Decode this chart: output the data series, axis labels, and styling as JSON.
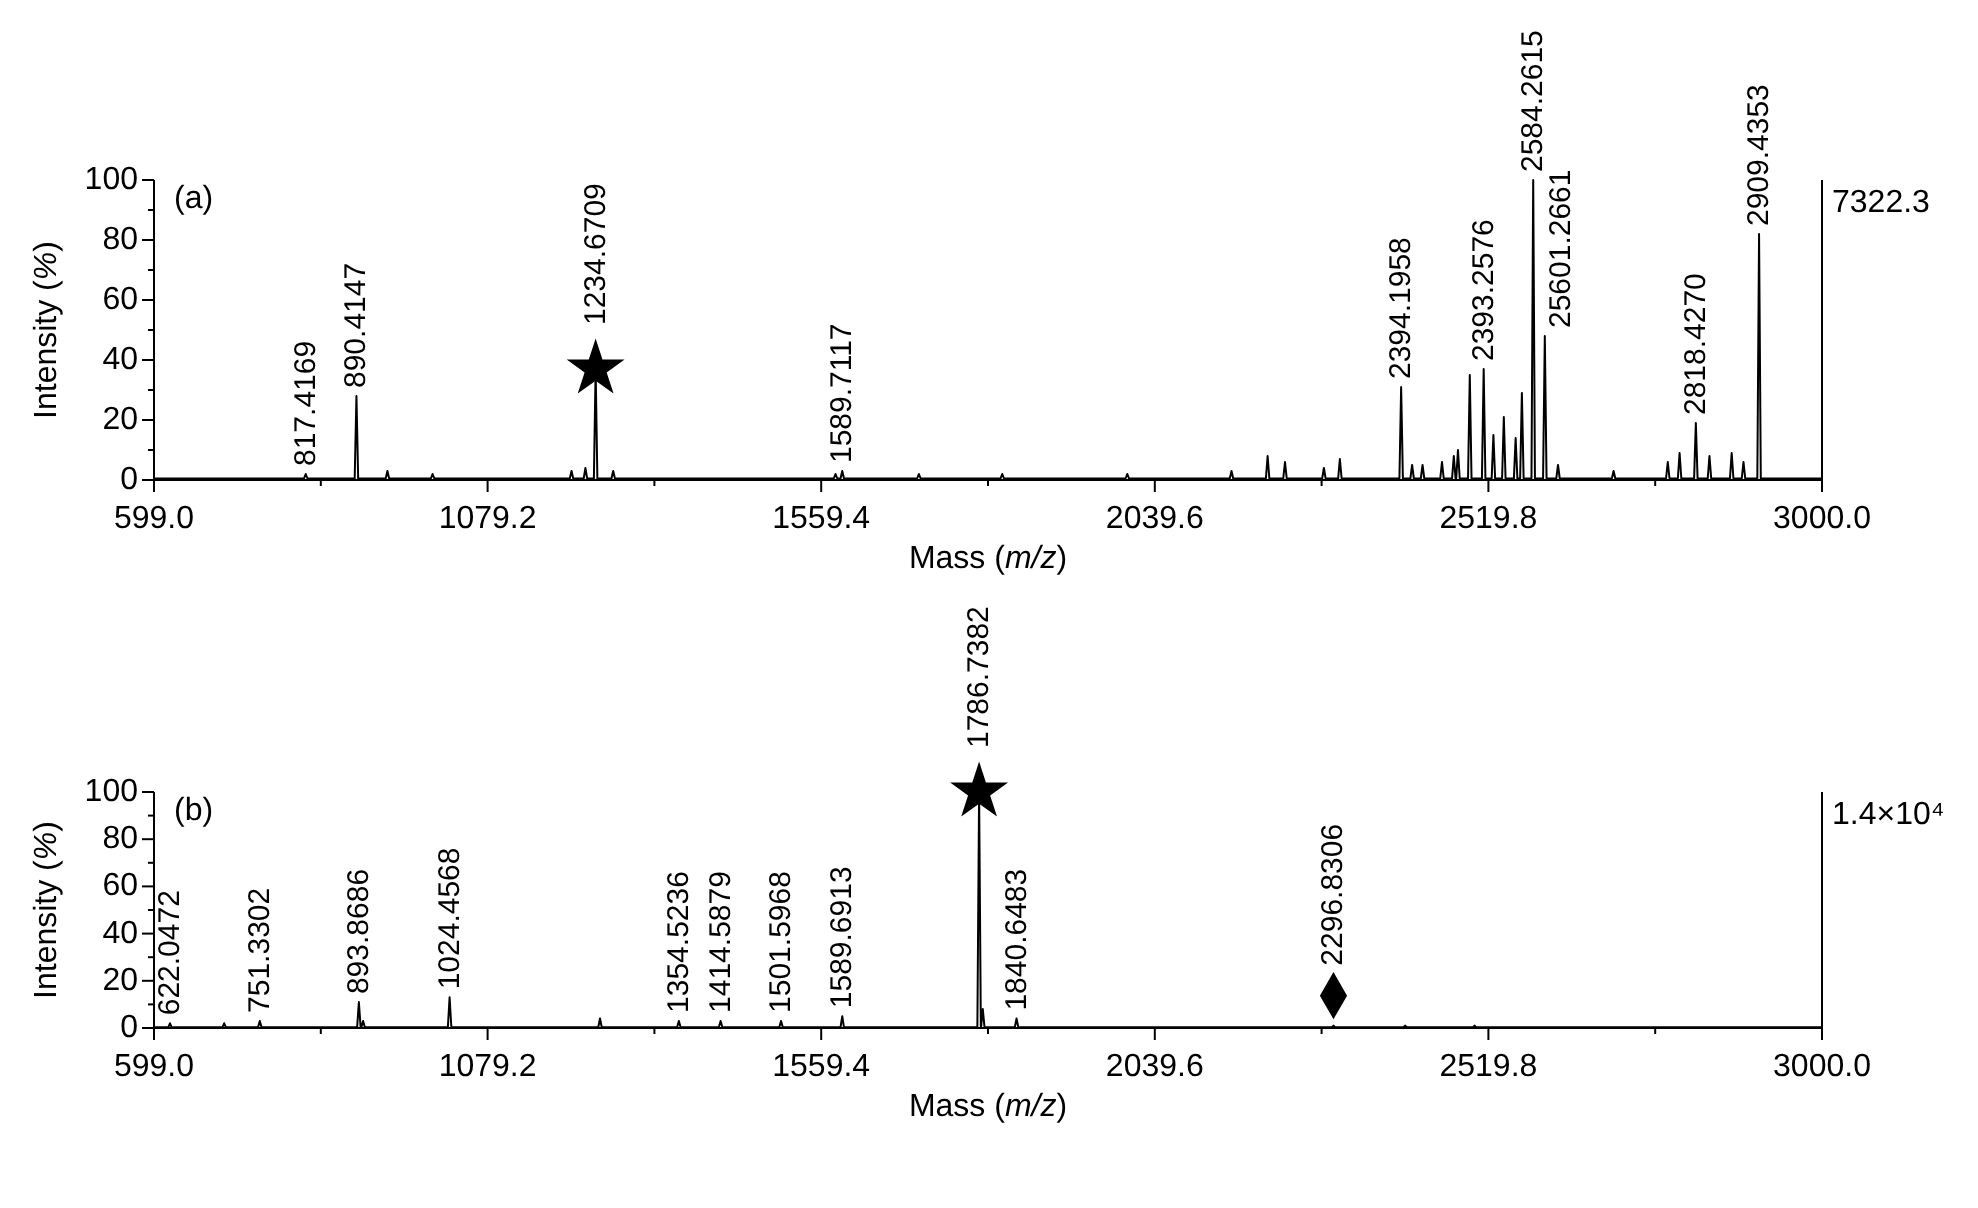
{
  "chart_data": [
    {
      "type": "line",
      "xlabel": "Mass (m/z)",
      "ylabel": "Intensity (%)",
      "xlim": [
        599,
        3000
      ],
      "ylim": [
        0,
        100
      ],
      "xticks": [
        {
          "value": 599,
          "label": "599.0"
        },
        {
          "value": 839.1,
          "label": null
        },
        {
          "value": 1079.2,
          "label": "1079.2"
        },
        {
          "value": 1319.3,
          "label": null
        },
        {
          "value": 1559.4,
          "label": "1559.4"
        },
        {
          "value": 1799.5,
          "label": null
        },
        {
          "value": 2039.6,
          "label": "2039.6"
        },
        {
          "value": 2279.7,
          "label": null
        },
        {
          "value": 2519.8,
          "label": "2519.8"
        },
        {
          "value": 2759.9,
          "label": null
        },
        {
          "value": 3000,
          "label": "3000.0"
        }
      ],
      "yticks": [
        0,
        {
          "value": 10,
          "label": null
        },
        20,
        {
          "value": 30,
          "label": null
        },
        40,
        {
          "value": 50,
          "label": null
        },
        60,
        {
          "value": 70,
          "label": null
        },
        80,
        {
          "value": 90,
          "label": null
        },
        100
      ],
      "series": [
        {
          "color": "#000000",
          "x": [
            599,
            814.9,
            817.4,
            819.9,
            887.9,
            890.4,
            892.9,
            932.5,
            935,
            937.5,
            997.5,
            1000,
            1002.5,
            1197.5,
            1200,
            1202.5,
            1217.5,
            1220,
            1222.5,
            1232.2,
            1234.7,
            1237.2,
            1257.5,
            1260,
            1262.5,
            1577.5,
            1580,
            1582.5,
            1587.2,
            1589.7,
            1592.2,
            1697.5,
            1700,
            1702.5,
            1817.5,
            1820,
            1822.5,
            1997.5,
            2000,
            2002.5,
            2147.5,
            2150,
            2152.5,
            2199.5,
            2202,
            2204.5,
            2224.5,
            2227,
            2229.5,
            2280.5,
            2283,
            2285.5,
            2303.5,
            2306,
            2308.5,
            2391.7,
            2394.2,
            2396.7,
            2407.5,
            2410,
            2412.5,
            2422.5,
            2425,
            2427.5,
            2450.5,
            2453,
            2455.5,
            2467.5,
            2470,
            2472.5,
            2473.5,
            2476,
            2478.5,
            2490.5,
            2493,
            2495.5,
            2510.5,
            2513,
            2515.5,
            2524.5,
            2527,
            2529.5,
            2539.5,
            2542,
            2544.5,
            2556.5,
            2559,
            2561.5,
            2565.5,
            2568,
            2570.5,
            2581.8,
            2584.3,
            2586.8,
            2598.5,
            2601,
            2603.5,
            2617.5,
            2620,
            2622.5,
            2697.5,
            2700,
            2702.5,
            2775.5,
            2778,
            2780.5,
            2792.5,
            2795,
            2797.5,
            2815.9,
            2818.4,
            2820.9,
            2835.5,
            2838,
            2840.5,
            2867.5,
            2870,
            2872.5,
            2884.5,
            2887,
            2889.5,
            2906.9,
            2909.4,
            2911.9,
            3000
          ],
          "values": [
            0.5,
            0.5,
            2,
            0.5,
            0.5,
            28,
            0.5,
            0.5,
            3,
            0.5,
            0.5,
            2,
            0.5,
            0.5,
            3,
            0.5,
            0.5,
            4,
            0.5,
            0.5,
            37,
            0.5,
            0.5,
            3,
            0.5,
            0.5,
            2,
            0.5,
            0.5,
            3,
            0.5,
            0.5,
            2,
            0.5,
            0.5,
            2,
            0.5,
            0.5,
            2,
            0.5,
            0.5,
            3,
            0.5,
            0.5,
            8,
            0.5,
            0.5,
            6,
            0.5,
            0.5,
            4,
            0.5,
            0.5,
            7,
            0.5,
            0.5,
            31,
            0.5,
            0.5,
            5,
            0.5,
            0.5,
            5,
            0.5,
            0.5,
            6,
            0.5,
            0.5,
            8,
            0.5,
            0.5,
            10,
            0.5,
            0.5,
            35,
            0.5,
            0.5,
            37,
            0.5,
            0.5,
            15,
            0.5,
            0.5,
            21,
            0.5,
            0.5,
            14,
            0.5,
            0.5,
            29,
            0.5,
            0.5,
            100,
            0.5,
            0.5,
            48,
            0.5,
            0.5,
            5,
            0.5,
            0.5,
            3,
            0.5,
            0.5,
            6,
            0.5,
            0.5,
            9,
            0.5,
            0.5,
            19,
            0.5,
            0.5,
            8,
            0.5,
            0.5,
            9,
            0.5,
            0.5,
            6,
            0.5,
            0.5,
            82,
            0.5,
            0.5
          ]
        }
      ],
      "annotations": [
        "(a)",
        "7322.3",
        {
          "text": "817.4169",
          "x": 817.4,
          "y": 2
        },
        {
          "text": "890.4147",
          "x": 890.4,
          "y": 28
        },
        {
          "text": "1234.6709",
          "x": 1234.7,
          "y": 37
        },
        {
          "text": "1589.7117",
          "x": 1589.7,
          "y": 3
        },
        {
          "text": "2394.1958",
          "x": 2394.2,
          "y": 31
        },
        {
          "text": "2393.2576",
          "x": 2513,
          "y": 37
        },
        {
          "text": "2584.2615",
          "x": 2584.3,
          "y": 100
        },
        {
          "text": "25601.2661",
          "x": 2601,
          "y": 48
        },
        {
          "text": "2818.4270",
          "x": 2818.4,
          "y": 19
        },
        {
          "text": "2909.4353",
          "x": 2909.4,
          "y": 82
        }
      ]
    },
    {
      "type": "line",
      "xlabel": "Mass (m/z)",
      "ylabel": "Intensity (%)",
      "xlim": [
        599,
        3000
      ],
      "ylim": [
        0,
        100
      ],
      "xticks": [
        {
          "value": 599,
          "label": "599.0"
        },
        {
          "value": 839.1,
          "label": null
        },
        {
          "value": 1079.2,
          "label": "1079.2"
        },
        {
          "value": 1319.3,
          "label": null
        },
        {
          "value": 1559.4,
          "label": "1559.4"
        },
        {
          "value": 1799.5,
          "label": null
        },
        {
          "value": 2039.6,
          "label": "2039.6"
        },
        {
          "value": 2279.7,
          "label": null
        },
        {
          "value": 2519.8,
          "label": "2519.8"
        },
        {
          "value": 2759.9,
          "label": null
        },
        {
          "value": 3000,
          "label": "3000.0"
        }
      ],
      "yticks": [
        0,
        {
          "value": 10,
          "label": null
        },
        20,
        {
          "value": 30,
          "label": null
        },
        40,
        {
          "value": 50,
          "label": null
        },
        60,
        {
          "value": 70,
          "label": null
        },
        80,
        {
          "value": 90,
          "label": null
        },
        100
      ],
      "series": [
        {
          "color": "#000000",
          "x": [
            599,
            619.5,
            622,
            624.5,
            697.5,
            700,
            702.5,
            748.8,
            751.3,
            753.8,
            891.4,
            893.9,
            896.4,
            897.5,
            900,
            902.5,
            1022,
            1024.5,
            1027,
            1238.5,
            1241,
            1243.5,
            1352,
            1354.5,
            1357,
            1412.1,
            1414.6,
            1417.1,
            1499.1,
            1501.6,
            1504.1,
            1587.2,
            1589.7,
            1592.2,
            1784.2,
            1786.7,
            1789.2,
            1789.5,
            1792,
            1794.5,
            1838.1,
            1840.6,
            1843.1,
            2294.3,
            2296.8,
            2299.3,
            2397.5,
            2400,
            2402.5,
            2497.5,
            2500,
            2502.5,
            3000
          ],
          "values": [
            0.3,
            0.3,
            2,
            0.3,
            0.3,
            2,
            0.3,
            0.3,
            3,
            0.3,
            0.3,
            11,
            0.3,
            0.3,
            3,
            0.3,
            0.3,
            13,
            0.3,
            0.3,
            4,
            0.3,
            0.3,
            3,
            0.3,
            0.3,
            3,
            0.3,
            0.3,
            3,
            0.3,
            0.3,
            5,
            0.3,
            0.3,
            100,
            0.3,
            0.3,
            8,
            0.3,
            0.3,
            4,
            0.3,
            0.3,
            1,
            0.3,
            0.3,
            1,
            0.3,
            0.3,
            1,
            0.3,
            0.3
          ]
        }
      ],
      "annotations": [
        "(b)",
        "1.4×10⁴",
        {
          "text": "622.0472",
          "x": 622,
          "y": 2
        },
        {
          "text": "751.3302",
          "x": 751.3,
          "y": 3
        },
        {
          "text": "893.8686",
          "x": 893.9,
          "y": 11
        },
        {
          "text": "1024.4568",
          "x": 1024.5,
          "y": 13
        },
        {
          "text": "1354.5236",
          "x": 1354.5,
          "y": 3
        },
        {
          "text": "1414.5879",
          "x": 1414.6,
          "y": 3
        },
        {
          "text": "1501.5968",
          "x": 1501.6,
          "y": 3
        },
        {
          "text": "1589.6913",
          "x": 1589.7,
          "y": 5
        },
        {
          "text": "1786.7382",
          "x": 1786.7,
          "y": 100
        },
        {
          "text": "1840.6483",
          "x": 1840.6,
          "y": 4
        },
        {
          "text": "2296.8306",
          "x": 2296.8,
          "y": 1
        }
      ]
    }
  ]
}
